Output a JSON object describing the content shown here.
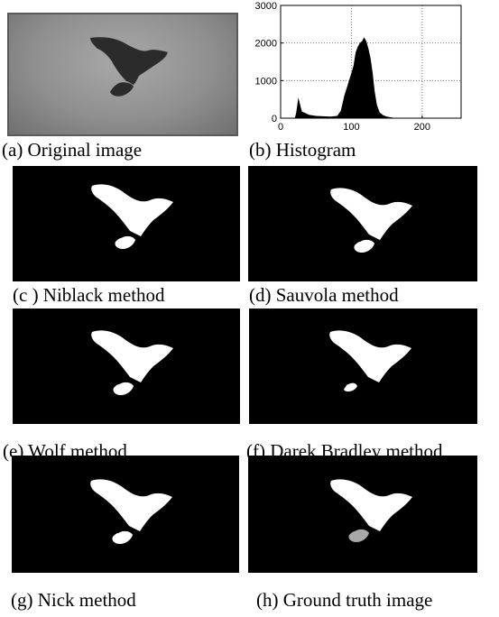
{
  "captions": {
    "a": "(a) Original image",
    "b": "(b) Histogram",
    "c": "(c ) Niblack method",
    "d": "(d) Sauvola method",
    "e": "(e) Wolf method",
    "f": "(f) Darek Bradley method",
    "g": "(g) Nick method",
    "h": "(h) Ground truth image"
  },
  "chart_data": {
    "type": "area",
    "title": "",
    "xlabel": "",
    "ylabel": "",
    "xlim": [
      0,
      255
    ],
    "ylim": [
      0,
      3000
    ],
    "x_ticks": [
      "0",
      "100",
      "200"
    ],
    "y_ticks": [
      "0",
      "1000",
      "2000",
      "3000"
    ],
    "grid": true,
    "series": [
      {
        "x": [
          0,
          10,
          20,
          22,
          25,
          30,
          40,
          50,
          60,
          70,
          80,
          85,
          90,
          95,
          100,
          103,
          106,
          109,
          112,
          115,
          118,
          121,
          124,
          127,
          130,
          133,
          136,
          140,
          145,
          150,
          160,
          180,
          200,
          230,
          255
        ],
        "values": [
          0,
          0,
          0,
          150,
          550,
          180,
          90,
          60,
          50,
          40,
          60,
          200,
          600,
          900,
          1200,
          1400,
          1750,
          1900,
          2000,
          2050,
          2150,
          2050,
          1850,
          1600,
          1200,
          700,
          350,
          150,
          80,
          40,
          10,
          0,
          0,
          0,
          0
        ]
      }
    ]
  }
}
